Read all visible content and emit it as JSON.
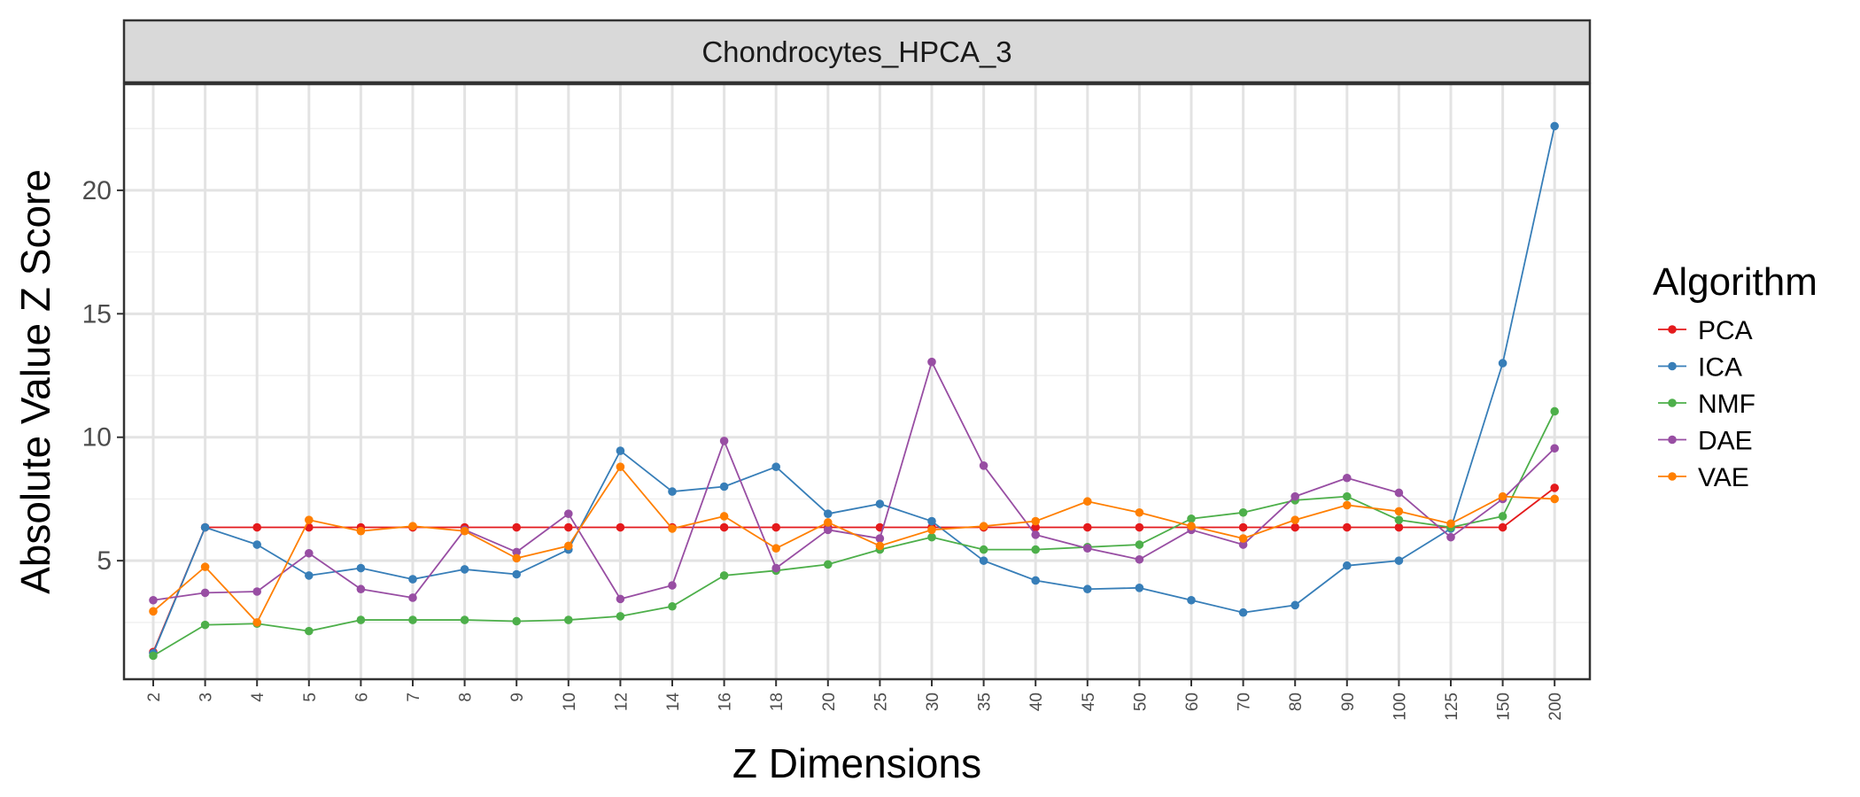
{
  "chart_data": {
    "type": "line",
    "title": "Chondrocytes_HPCA_3",
    "xlabel": "Z Dimensions",
    "ylabel": "Absolute Value Z Score",
    "categories": [
      "2",
      "3",
      "4",
      "5",
      "6",
      "7",
      "8",
      "9",
      "10",
      "12",
      "14",
      "16",
      "18",
      "20",
      "25",
      "30",
      "35",
      "40",
      "45",
      "50",
      "60",
      "70",
      "80",
      "90",
      "100",
      "125",
      "150",
      "200"
    ],
    "ylim": [
      0.2,
      24.3
    ],
    "yticks": [
      5,
      10,
      15,
      20
    ],
    "grid": true,
    "legend": {
      "title": "Algorithm",
      "position": "right"
    },
    "series": [
      {
        "name": "PCA",
        "color": "#E41A1C",
        "values": [
          1.3,
          6.35,
          6.35,
          6.35,
          6.35,
          6.35,
          6.35,
          6.35,
          6.35,
          6.35,
          6.35,
          6.35,
          6.35,
          6.35,
          6.35,
          6.35,
          6.35,
          6.35,
          6.35,
          6.35,
          6.35,
          6.35,
          6.35,
          6.35,
          6.35,
          6.35,
          6.35,
          7.95
        ]
      },
      {
        "name": "ICA",
        "color": "#377EB8",
        "values": [
          1.25,
          6.35,
          5.65,
          4.4,
          4.7,
          4.25,
          4.65,
          4.45,
          5.45,
          9.45,
          7.8,
          8.0,
          8.8,
          6.9,
          7.3,
          6.6,
          5.0,
          4.2,
          3.85,
          3.9,
          3.4,
          2.9,
          3.2,
          4.8,
          5.0,
          6.3,
          13.0,
          22.6
        ]
      },
      {
        "name": "NMF",
        "color": "#4DAF4A",
        "values": [
          1.15,
          2.4,
          2.45,
          2.15,
          2.6,
          2.6,
          2.6,
          2.55,
          2.6,
          2.75,
          3.15,
          4.4,
          4.6,
          4.85,
          5.45,
          5.95,
          5.45,
          5.45,
          5.55,
          5.65,
          6.7,
          6.95,
          7.45,
          7.6,
          6.65,
          6.35,
          6.8,
          11.05
        ]
      },
      {
        "name": "DAE",
        "color": "#984EA3",
        "values": [
          3.4,
          3.7,
          3.75,
          5.3,
          3.85,
          3.5,
          6.25,
          5.35,
          6.9,
          3.45,
          4.0,
          9.85,
          4.7,
          6.25,
          5.9,
          13.05,
          8.85,
          6.05,
          5.5,
          5.05,
          6.25,
          5.65,
          7.6,
          8.35,
          7.75,
          5.95,
          7.5,
          9.55
        ]
      },
      {
        "name": "VAE",
        "color": "#FF7F00",
        "values": [
          2.95,
          4.75,
          2.5,
          6.65,
          6.2,
          6.4,
          6.2,
          5.1,
          5.6,
          8.8,
          6.3,
          6.8,
          5.5,
          6.55,
          5.6,
          6.25,
          6.4,
          6.6,
          7.4,
          6.95,
          6.4,
          5.9,
          6.65,
          7.25,
          7.0,
          6.5,
          7.6,
          7.5
        ]
      }
    ]
  }
}
